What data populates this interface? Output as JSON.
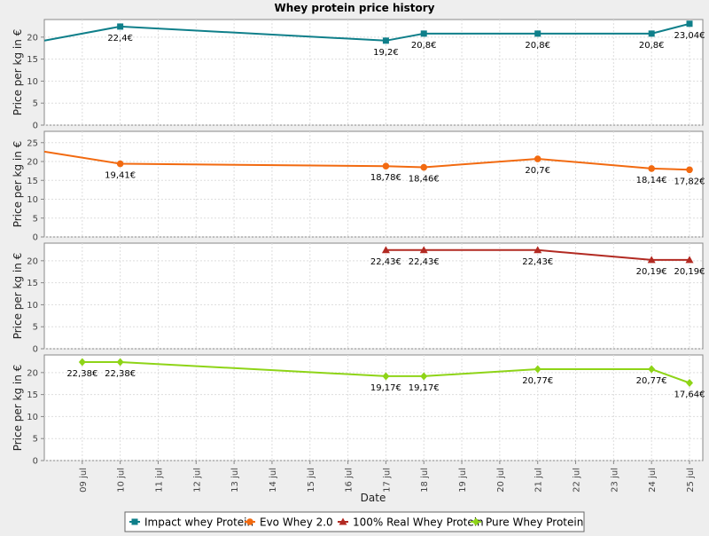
{
  "chart_data": {
    "type": "line",
    "title": "Whey protein price history",
    "xlabel": "Date",
    "ylabel": "Price per kg in €",
    "x": [
      "09 jul",
      "10 jul",
      "11 jul",
      "12 jul",
      "13 jul",
      "14 jul",
      "15 jul",
      "16 jul",
      "17 jul",
      "18 jul",
      "19 jul",
      "20 jul",
      "21 jul",
      "22 jul",
      "23 jul",
      "24 jul",
      "25 jul"
    ],
    "xlim": [
      "08 jul",
      "25 jul"
    ],
    "grid": true,
    "legend_position": "bottom",
    "value_suffix": "€",
    "series": [
      {
        "name": "Impact whey Protein",
        "color": "#0f7f8a",
        "marker": "square",
        "yticks": [
          0,
          5,
          10,
          15,
          20
        ],
        "ylim": [
          0,
          24
        ],
        "points": [
          {
            "x": "08 jul",
            "y": 19.2,
            "label": ""
          },
          {
            "x": "10 jul",
            "y": 22.4,
            "label": "22,4€"
          },
          {
            "x": "17 jul",
            "y": 19.2,
            "label": "19,2€"
          },
          {
            "x": "18 jul",
            "y": 20.8,
            "label": "20,8€"
          },
          {
            "x": "21 jul",
            "y": 20.8,
            "label": "20,8€"
          },
          {
            "x": "24 jul",
            "y": 20.8,
            "label": "20,8€"
          },
          {
            "x": "25 jul",
            "y": 23.04,
            "label": "23,04€"
          }
        ]
      },
      {
        "name": "Evo Whey 2.0",
        "color": "#f26a10",
        "marker": "circle",
        "yticks": [
          0,
          5,
          10,
          15,
          20,
          25
        ],
        "ylim": [
          0,
          28
        ],
        "points": [
          {
            "x": "08 jul",
            "y": 22.6,
            "label": ""
          },
          {
            "x": "10 jul",
            "y": 19.41,
            "label": "19,41€"
          },
          {
            "x": "17 jul",
            "y": 18.78,
            "label": "18,78€"
          },
          {
            "x": "18 jul",
            "y": 18.46,
            "label": "18,46€"
          },
          {
            "x": "21 jul",
            "y": 20.7,
            "label": "20,7€"
          },
          {
            "x": "24 jul",
            "y": 18.14,
            "label": "18,14€"
          },
          {
            "x": "25 jul",
            "y": 17.82,
            "label": "17,82€"
          }
        ]
      },
      {
        "name": "100% Real Whey Protein",
        "color": "#b22a22",
        "marker": "triangle",
        "yticks": [
          0,
          5,
          10,
          15,
          20
        ],
        "ylim": [
          0,
          24
        ],
        "points": [
          {
            "x": "17 jul",
            "y": 22.43,
            "label": "22,43€"
          },
          {
            "x": "18 jul",
            "y": 22.43,
            "label": "22,43€"
          },
          {
            "x": "21 jul",
            "y": 22.43,
            "label": "22,43€"
          },
          {
            "x": "24 jul",
            "y": 20.19,
            "label": "20,19€"
          },
          {
            "x": "25 jul",
            "y": 20.19,
            "label": "20,19€"
          }
        ]
      },
      {
        "name": "Pure Whey Protein",
        "color": "#8ed417",
        "marker": "diamond",
        "yticks": [
          0,
          5,
          10,
          15,
          20
        ],
        "ylim": [
          0,
          24
        ],
        "points": [
          {
            "x": "09 jul",
            "y": 22.38,
            "label": "22,38€"
          },
          {
            "x": "10 jul",
            "y": 22.38,
            "label": "22,38€"
          },
          {
            "x": "17 jul",
            "y": 19.17,
            "label": "19,17€"
          },
          {
            "x": "18 jul",
            "y": 19.17,
            "label": "19,17€"
          },
          {
            "x": "21 jul",
            "y": 20.77,
            "label": "20,77€"
          },
          {
            "x": "24 jul",
            "y": 20.77,
            "label": "20,77€"
          },
          {
            "x": "25 jul",
            "y": 17.64,
            "label": "17,64€"
          }
        ]
      }
    ]
  }
}
